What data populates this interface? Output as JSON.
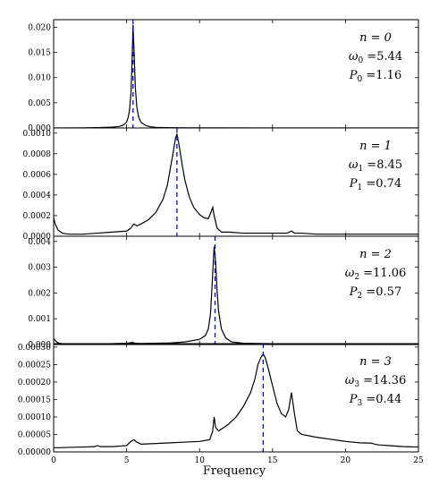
{
  "chart_data": {
    "type": "line",
    "xlabel": "Frequency",
    "xlim": [
      0,
      25
    ],
    "x_ticks": [
      0,
      5,
      10,
      15,
      20,
      25
    ],
    "x_tick_labels": [
      "0",
      "5",
      "10",
      "15",
      "20",
      "25"
    ],
    "line_color": "#000000",
    "marker_color": "#0000ff",
    "panels": [
      {
        "n_label": "n = 0",
        "omega_label": "ω0 =5.44",
        "omega_sub": "0",
        "omega_value": "=5.44",
        "p_label": "P0 =1.16",
        "p_sub": "0",
        "p_value": "=1.16",
        "marker_x": 5.44,
        "ylim": [
          0,
          0.0215
        ],
        "y_ticks": [
          0,
          0.005,
          0.01,
          0.015,
          0.02
        ],
        "y_tick_labels": [
          "0.000",
          "0.005",
          "0.010",
          "0.015",
          "0.020"
        ],
        "x": [
          0,
          2,
          3,
          4,
          4.5,
          4.8,
          5.0,
          5.1,
          5.2,
          5.3,
          5.35,
          5.4,
          5.44,
          5.5,
          5.55,
          5.6,
          5.7,
          5.8,
          5.9,
          6.0,
          6.3,
          6.6,
          7,
          8,
          10,
          15,
          25
        ],
        "y": [
          1e-05,
          3e-05,
          6e-05,
          0.00015,
          0.0003,
          0.0006,
          0.0012,
          0.002,
          0.0035,
          0.007,
          0.011,
          0.016,
          0.0205,
          0.016,
          0.012,
          0.008,
          0.0042,
          0.0025,
          0.0016,
          0.0011,
          0.0005,
          0.00025,
          0.00012,
          5e-05,
          2e-05,
          1e-05,
          1e-05
        ]
      },
      {
        "n_label": "n = 1",
        "omega_label": "ω1 =8.45",
        "omega_sub": "1",
        "omega_value": "=8.45",
        "p_label": "P1 =0.74",
        "p_sub": "1",
        "p_value": "=0.74",
        "marker_x": 8.45,
        "ylim": [
          0,
          0.00105
        ],
        "y_ticks": [
          0,
          0.0002,
          0.0004,
          0.0006,
          0.0008,
          0.001
        ],
        "y_tick_labels": [
          "0.0000",
          "0.0002",
          "0.0004",
          "0.0006",
          "0.0008",
          "0.0010"
        ],
        "x": [
          0,
          0.1,
          0.3,
          0.6,
          1.0,
          2,
          3,
          4,
          5,
          5.3,
          5.5,
          5.7,
          6.0,
          6.5,
          7.0,
          7.5,
          7.8,
          8.0,
          8.2,
          8.35,
          8.45,
          8.6,
          8.8,
          9.0,
          9.3,
          9.6,
          10.0,
          10.3,
          10.6,
          10.8,
          10.9,
          11.0,
          11.2,
          11.5,
          12,
          13,
          14,
          15,
          16,
          16.3,
          16.5,
          16.8,
          17,
          18,
          20,
          22,
          25
        ],
        "y": [
          0.00018,
          0.00012,
          6e-05,
          3e-05,
          2e-05,
          2e-05,
          3e-05,
          4e-05,
          5e-05,
          8e-05,
          0.00012,
          0.0001,
          0.00012,
          0.00016,
          0.00023,
          0.00036,
          0.0005,
          0.00066,
          0.00082,
          0.00095,
          0.00099,
          0.00088,
          0.0007,
          0.00054,
          0.00038,
          0.00028,
          0.00021,
          0.00018,
          0.00017,
          0.00024,
          0.00028,
          0.0002,
          8e-05,
          4e-05,
          4e-05,
          3e-05,
          3e-05,
          3e-05,
          3e-05,
          5e-05,
          3e-05,
          3e-05,
          3e-05,
          2e-05,
          2e-05,
          2e-05,
          2e-05
        ]
      },
      {
        "n_label": "n = 2",
        "omega_label": "ω2 =11.06",
        "omega_sub": "2",
        "omega_value": "=11.06",
        "p_label": "P2 =0.57",
        "p_sub": "2",
        "p_value": "=0.57",
        "marker_x": 11.06,
        "ylim": [
          0,
          0.0042
        ],
        "y_ticks": [
          0,
          0.001,
          0.002,
          0.003,
          0.004
        ],
        "y_tick_labels": [
          "0.000",
          "0.001",
          "0.002",
          "0.003",
          "0.004"
        ],
        "x": [
          0,
          0.1,
          0.3,
          0.6,
          1,
          3,
          5,
          5.4,
          5.6,
          6,
          8,
          9,
          10,
          10.4,
          10.6,
          10.75,
          10.85,
          10.95,
          11.0,
          11.1,
          11.2,
          11.3,
          11.5,
          11.8,
          12.2,
          13,
          15,
          20,
          25
        ],
        "y": [
          0.00025,
          0.00015,
          6e-05,
          3e-05,
          2e-05,
          2e-05,
          5e-05,
          8e-05,
          5e-05,
          4e-05,
          6e-05,
          0.0001,
          0.0002,
          0.00035,
          0.0006,
          0.0012,
          0.0022,
          0.0033,
          0.0038,
          0.0032,
          0.0021,
          0.0013,
          0.0006,
          0.00025,
          0.0001,
          5e-05,
          3e-05,
          2e-05,
          2e-05
        ]
      },
      {
        "n_label": "n = 3",
        "omega_label": "ω3 =14.36",
        "omega_sub": "3",
        "omega_value": "=14.36",
        "p_label": "P3 =0.44",
        "p_sub": "3",
        "p_value": "=0.44",
        "marker_x": 14.36,
        "ylim": [
          0,
          0.00031
        ],
        "y_ticks": [
          0,
          5e-05,
          0.0001,
          0.00015,
          0.0002,
          0.00025,
          0.0003
        ],
        "y_tick_labels": [
          "0.00000",
          "0.00005",
          "0.00010",
          "0.00015",
          "0.00020",
          "0.00025",
          "0.00030"
        ],
        "x": [
          0,
          0.5,
          1,
          2,
          2.8,
          3.0,
          3.2,
          4,
          5,
          5.3,
          5.5,
          5.7,
          6,
          7,
          8,
          9,
          10,
          10.7,
          10.9,
          11.0,
          11.1,
          11.3,
          11.6,
          12,
          12.5,
          13,
          13.5,
          13.8,
          14.0,
          14.2,
          14.36,
          14.5,
          14.7,
          15.0,
          15.3,
          15.6,
          15.9,
          16.1,
          16.3,
          16.5,
          16.7,
          17,
          18,
          19,
          20,
          21,
          21.8,
          22,
          22.3,
          23,
          24,
          25
        ],
        "y": [
          1.2e-05,
          1.2e-05,
          1.3e-05,
          1.4e-05,
          1.5e-05,
          1.8e-05,
          1.5e-05,
          1.5e-05,
          1.8e-05,
          3e-05,
          3.5e-05,
          2.8e-05,
          2.2e-05,
          2.4e-05,
          2.6e-05,
          2.8e-05,
          3e-05,
          3.5e-05,
          6e-05,
          0.0001,
          7e-05,
          6e-05,
          6.8e-05,
          8e-05,
          0.0001,
          0.00013,
          0.00017,
          0.00021,
          0.00025,
          0.00027,
          0.00028,
          0.00027,
          0.00024,
          0.00019,
          0.00014,
          0.00011,
          0.0001,
          0.00012,
          0.00017,
          0.00011,
          6e-05,
          5e-05,
          4.2e-05,
          3.6e-05,
          3e-05,
          2.6e-05,
          2.5e-05,
          2.2e-05,
          2e-05,
          1.8e-05,
          1.5e-05,
          1.4e-05
        ]
      }
    ]
  }
}
